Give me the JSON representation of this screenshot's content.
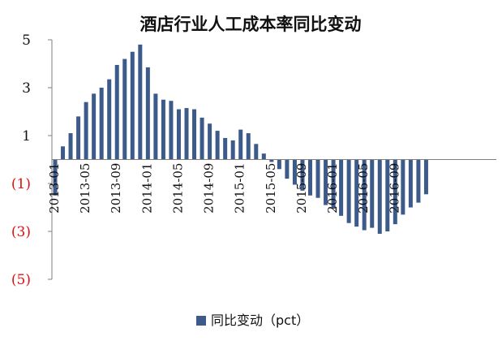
{
  "chart_data": {
    "type": "bar",
    "title": "酒店行业人工成本率同比变动",
    "series": [
      {
        "name": "同比变动（pct）",
        "color": "#3c5a8a",
        "values": [
          -1.5,
          0.55,
          1.1,
          1.8,
          2.4,
          2.75,
          3.0,
          3.35,
          3.95,
          4.2,
          4.5,
          4.8,
          3.85,
          2.75,
          2.5,
          2.45,
          2.1,
          2.15,
          2.1,
          1.75,
          1.5,
          1.2,
          0.9,
          0.8,
          1.25,
          1.1,
          0.65,
          0.25,
          -0.1,
          -0.4,
          -0.8,
          -1.05,
          -1.3,
          -1.5,
          -1.6,
          -1.9,
          -2.05,
          -2.35,
          -2.65,
          -2.8,
          -2.95,
          -2.85,
          -3.1,
          -3.0,
          -2.7,
          -2.3,
          -2.0,
          -1.8,
          -1.45
        ]
      }
    ],
    "x_tick_labels": [
      "2013-01",
      "2013-05",
      "2013-09",
      "2014-01",
      "2014-05",
      "2014-09",
      "2015-01",
      "2015-05",
      "2015-09",
      "2016-01",
      "2016-05",
      "2016-09"
    ],
    "y_tick_labels": [
      {
        "value": 5,
        "label": "5",
        "color": "#111111"
      },
      {
        "value": 3,
        "label": "3",
        "color": "#111111"
      },
      {
        "value": 1,
        "label": "1",
        "color": "#111111"
      },
      {
        "value": -1,
        "label": "(1)",
        "color": "#e01010"
      },
      {
        "value": -3,
        "label": "(3)",
        "color": "#e01010"
      },
      {
        "value": -5,
        "label": "(5)",
        "color": "#e01010"
      }
    ],
    "ylim": [
      -5,
      5
    ],
    "grid": false,
    "legend_position": "bottom"
  }
}
